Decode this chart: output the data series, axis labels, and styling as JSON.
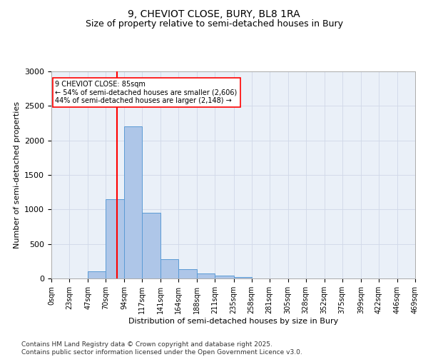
{
  "title": "9, CHEVIOT CLOSE, BURY, BL8 1RA",
  "subtitle": "Size of property relative to semi-detached houses in Bury",
  "xlabel": "Distribution of semi-detached houses by size in Bury",
  "ylabel": "Number of semi-detached properties",
  "bins": [
    0,
    23,
    47,
    70,
    94,
    117,
    141,
    164,
    188,
    211,
    235,
    258,
    281,
    305,
    328,
    352,
    375,
    399,
    422,
    446,
    469
  ],
  "bin_labels": [
    "0sqm",
    "23sqm",
    "47sqm",
    "70sqm",
    "94sqm",
    "117sqm",
    "141sqm",
    "164sqm",
    "188sqm",
    "211sqm",
    "235sqm",
    "258sqm",
    "281sqm",
    "305sqm",
    "328sqm",
    "352sqm",
    "375sqm",
    "399sqm",
    "422sqm",
    "446sqm",
    "469sqm"
  ],
  "values": [
    0,
    0,
    100,
    1150,
    2200,
    950,
    280,
    130,
    75,
    40,
    20,
    5,
    3,
    2,
    1,
    0,
    0,
    0,
    0,
    0
  ],
  "bar_color": "#aec6e8",
  "bar_edge_color": "#5b9bd5",
  "grid_color": "#d0d8e8",
  "background_color": "#eaf0f8",
  "vline_x": 85,
  "vline_color": "red",
  "annotation_text": "9 CHEVIOT CLOSE: 85sqm\n← 54% of semi-detached houses are smaller (2,606)\n44% of semi-detached houses are larger (2,148) →",
  "annotation_box_color": "white",
  "annotation_box_edge": "red",
  "ylim": [
    0,
    3000
  ],
  "yticks": [
    0,
    500,
    1000,
    1500,
    2000,
    2500,
    3000
  ],
  "footer_text": "Contains HM Land Registry data © Crown copyright and database right 2025.\nContains public sector information licensed under the Open Government Licence v3.0.",
  "title_fontsize": 10,
  "subtitle_fontsize": 9,
  "label_fontsize": 8,
  "tick_fontsize": 7,
  "footer_fontsize": 6.5
}
